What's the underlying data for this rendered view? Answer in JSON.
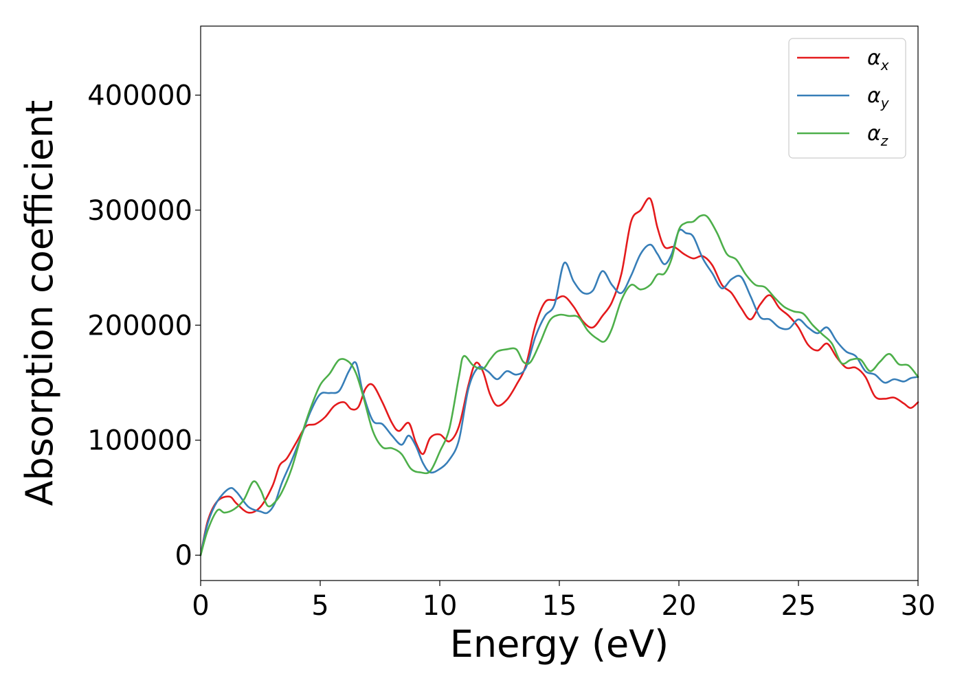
{
  "chart_data": {
    "type": "line",
    "title": "",
    "xlabel": "Energy (eV)",
    "ylabel": "Absorption coefficient",
    "xlim": [
      0,
      30
    ],
    "ylim": [
      -22000,
      460000
    ],
    "xticks": [
      0,
      5,
      10,
      15,
      20,
      25,
      30
    ],
    "yticks": [
      0,
      100000,
      200000,
      300000,
      400000
    ],
    "grid": false,
    "legend_position": "upper right",
    "series": [
      {
        "name": "α_x",
        "name_base": "α",
        "name_sub": "x",
        "color": "#e41a1c",
        "x": [
          0,
          0.3,
          0.7,
          1.2,
          1.5,
          2.0,
          2.5,
          3.0,
          3.3,
          3.6,
          4.0,
          4.4,
          4.8,
          5.2,
          5.6,
          6.0,
          6.3,
          6.6,
          6.9,
          7.2,
          7.6,
          8.0,
          8.3,
          8.7,
          9.0,
          9.3,
          9.6,
          10.0,
          10.4,
          10.8,
          11.2,
          11.5,
          11.8,
          12.1,
          12.4,
          12.8,
          13.2,
          13.6,
          14.0,
          14.4,
          14.8,
          15.2,
          15.6,
          16.0,
          16.4,
          16.8,
          17.2,
          17.6,
          18.0,
          18.4,
          18.8,
          19.1,
          19.4,
          19.8,
          20.2,
          20.6,
          21.0,
          21.4,
          21.8,
          22.2,
          22.6,
          23.0,
          23.4,
          23.8,
          24.2,
          24.6,
          25.0,
          25.4,
          25.8,
          26.2,
          26.6,
          27.0,
          27.4,
          27.8,
          28.2,
          28.6,
          29.0,
          29.4,
          29.7,
          30.0
        ],
        "y": [
          0,
          30000,
          47000,
          51000,
          45000,
          37000,
          42000,
          60000,
          78000,
          84000,
          98000,
          112000,
          114000,
          120000,
          130000,
          133000,
          127000,
          129000,
          145000,
          148000,
          133000,
          115000,
          108000,
          115000,
          98000,
          88000,
          102000,
          105000,
          99000,
          112000,
          148000,
          167000,
          160000,
          140000,
          130000,
          135000,
          148000,
          165000,
          200000,
          220000,
          222000,
          225000,
          216000,
          203000,
          198000,
          208000,
          220000,
          245000,
          290000,
          300000,
          310000,
          285000,
          268000,
          268000,
          262000,
          258000,
          260000,
          252000,
          235000,
          228000,
          215000,
          205000,
          218000,
          226000,
          215000,
          208000,
          198000,
          183000,
          178000,
          184000,
          172000,
          163000,
          163000,
          155000,
          138000,
          136000,
          137000,
          132000,
          128000,
          133000
        ]
      },
      {
        "name": "α_y",
        "name_base": "α",
        "name_sub": "y",
        "color": "#377eb8",
        "x": [
          0,
          0.3,
          0.7,
          1.2,
          1.5,
          2.0,
          2.5,
          2.8,
          3.1,
          3.4,
          3.8,
          4.2,
          4.6,
          5.0,
          5.4,
          5.8,
          6.2,
          6.5,
          6.8,
          7.2,
          7.6,
          8.0,
          8.4,
          8.7,
          9.0,
          9.3,
          9.6,
          10.0,
          10.4,
          10.8,
          11.2,
          11.6,
          12.0,
          12.4,
          12.8,
          13.2,
          13.6,
          14.0,
          14.4,
          14.8,
          15.2,
          15.6,
          16.0,
          16.4,
          16.8,
          17.2,
          17.6,
          18.0,
          18.4,
          18.8,
          19.1,
          19.4,
          19.7,
          20.0,
          20.3,
          20.6,
          21.0,
          21.4,
          21.8,
          22.2,
          22.6,
          23.0,
          23.4,
          23.8,
          24.2,
          24.6,
          25.0,
          25.4,
          25.8,
          26.2,
          26.6,
          27.0,
          27.4,
          27.8,
          28.2,
          28.6,
          29.0,
          29.4,
          29.7,
          30.0
        ],
        "y": [
          0,
          28000,
          47000,
          58000,
          55000,
          42000,
          38000,
          37000,
          45000,
          63000,
          82000,
          103000,
          125000,
          140000,
          141000,
          143000,
          160000,
          167000,
          140000,
          117000,
          114000,
          104000,
          96000,
          104000,
          95000,
          80000,
          72000,
          75000,
          83000,
          100000,
          145000,
          163000,
          160000,
          153000,
          160000,
          157000,
          163000,
          190000,
          208000,
          218000,
          254000,
          238000,
          228000,
          230000,
          247000,
          235000,
          228000,
          243000,
          262000,
          270000,
          262000,
          253000,
          262000,
          282000,
          280000,
          277000,
          258000,
          245000,
          232000,
          240000,
          242000,
          225000,
          207000,
          205000,
          198000,
          197000,
          205000,
          198000,
          193000,
          198000,
          186000,
          177000,
          173000,
          160000,
          157000,
          150000,
          153000,
          151000,
          154000,
          155000
        ]
      },
      {
        "name": "α_z",
        "name_base": "α",
        "name_sub": "z",
        "color": "#4daf4a",
        "x": [
          0,
          0.3,
          0.7,
          1.0,
          1.4,
          1.8,
          2.2,
          2.5,
          2.8,
          3.1,
          3.4,
          3.8,
          4.2,
          4.6,
          5.0,
          5.4,
          5.8,
          6.2,
          6.5,
          6.8,
          7.2,
          7.6,
          8.0,
          8.4,
          8.8,
          9.2,
          9.6,
          10.0,
          10.4,
          10.8,
          11.0,
          11.4,
          11.8,
          12.1,
          12.4,
          12.8,
          13.2,
          13.5,
          13.8,
          14.2,
          14.6,
          15.0,
          15.4,
          15.8,
          16.2,
          16.6,
          16.9,
          17.2,
          17.6,
          18.0,
          18.4,
          18.8,
          19.1,
          19.4,
          19.7,
          20.0,
          20.3,
          20.6,
          20.9,
          21.2,
          21.6,
          22.0,
          22.4,
          22.8,
          23.2,
          23.6,
          24.0,
          24.4,
          24.8,
          25.2,
          25.6,
          26.0,
          26.4,
          26.8,
          27.2,
          27.6,
          28.0,
          28.4,
          28.8,
          29.2,
          29.6,
          30.0
        ],
        "y": [
          0,
          22000,
          39000,
          37000,
          40000,
          48000,
          64000,
          57000,
          43000,
          46000,
          55000,
          75000,
          103000,
          128000,
          148000,
          158000,
          170000,
          168000,
          158000,
          138000,
          108000,
          94000,
          93000,
          88000,
          75000,
          72000,
          73000,
          90000,
          110000,
          155000,
          173000,
          165000,
          162000,
          170000,
          177000,
          179000,
          179000,
          168000,
          168000,
          185000,
          204000,
          209000,
          208000,
          207000,
          195000,
          188000,
          186000,
          197000,
          222000,
          235000,
          231000,
          235000,
          244000,
          245000,
          258000,
          283000,
          289000,
          290000,
          295000,
          294000,
          280000,
          262000,
          257000,
          244000,
          235000,
          233000,
          224000,
          216000,
          212000,
          210000,
          200000,
          192000,
          184000,
          167000,
          170000,
          170000,
          160000,
          168000,
          175000,
          166000,
          165000,
          155000
        ]
      }
    ]
  }
}
